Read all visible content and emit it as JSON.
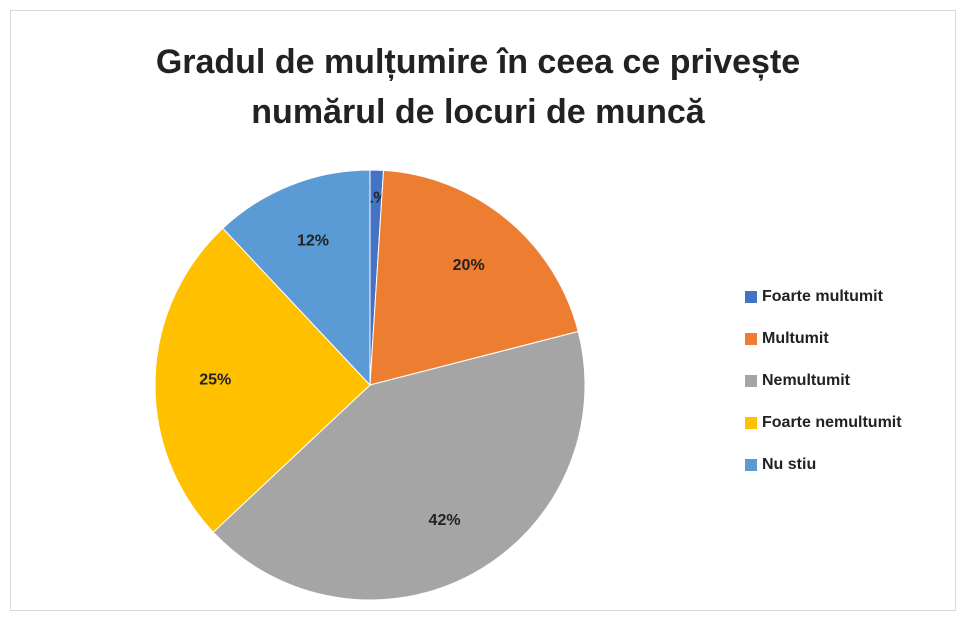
{
  "chart_data": {
    "type": "pie",
    "title": [
      "Gradul de mulțumire în ceea ce privește",
      "numărul de locuri de muncă"
    ],
    "categories": [
      "Foarte multumit",
      "Multumit",
      "Nemultumit",
      "Foarte nemultumit",
      "Nu stiu"
    ],
    "values": [
      1,
      20,
      42,
      25,
      12
    ],
    "value_labels": [
      "1%",
      "20%",
      "42%",
      "25%",
      "12%"
    ],
    "colors": [
      "#4472c4",
      "#ed7d31",
      "#a5a5a5",
      "#ffc000",
      "#5b9bd5"
    ],
    "legend": "right"
  }
}
